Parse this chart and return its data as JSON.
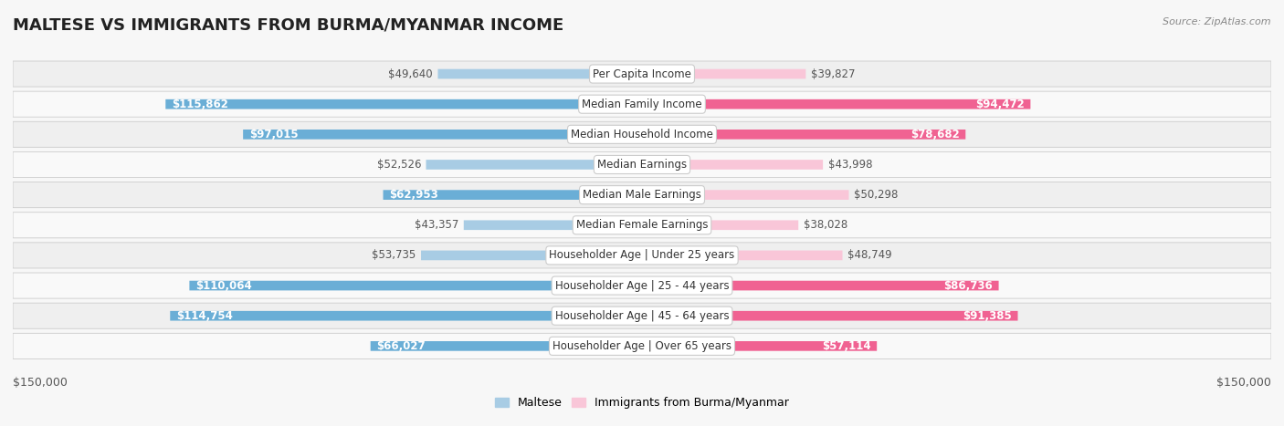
{
  "title": "MALTESE VS IMMIGRANTS FROM BURMA/MYANMAR INCOME",
  "source": "Source: ZipAtlas.com",
  "categories": [
    "Per Capita Income",
    "Median Family Income",
    "Median Household Income",
    "Median Earnings",
    "Median Male Earnings",
    "Median Female Earnings",
    "Householder Age | Under 25 years",
    "Householder Age | 25 - 44 years",
    "Householder Age | 45 - 64 years",
    "Householder Age | Over 65 years"
  ],
  "maltese_values": [
    49640,
    115862,
    97015,
    52526,
    62953,
    43357,
    53735,
    110064,
    114754,
    66027
  ],
  "burma_values": [
    39827,
    94472,
    78682,
    43998,
    50298,
    38028,
    48749,
    86736,
    91385,
    57114
  ],
  "maltese_labels": [
    "$49,640",
    "$115,862",
    "$97,015",
    "$52,526",
    "$62,953",
    "$43,357",
    "$53,735",
    "$110,064",
    "$114,754",
    "$66,027"
  ],
  "burma_labels": [
    "$39,827",
    "$94,472",
    "$78,682",
    "$43,998",
    "$50,298",
    "$38,028",
    "$48,749",
    "$86,736",
    "$91,385",
    "$57,114"
  ],
  "max_value": 150000,
  "maltese_color_light": "#a8cce4",
  "maltese_color_dark": "#6aaed6",
  "burma_color_light": "#f9c6d8",
  "burma_color_dark": "#f06292",
  "maltese_legend": "Maltese",
  "burma_legend": "Immigrants from Burma/Myanmar",
  "xlabel_left": "$150,000",
  "xlabel_right": "$150,000",
  "background_color": "#f7f7f7",
  "row_bg_even": "#efefef",
  "row_bg_odd": "#f9f9f9",
  "label_inside_color": "#ffffff",
  "label_outside_color": "#555555",
  "label_fontsize": 8.5,
  "category_fontsize": 8.5,
  "title_fontsize": 13,
  "inside_threshold": 55000
}
